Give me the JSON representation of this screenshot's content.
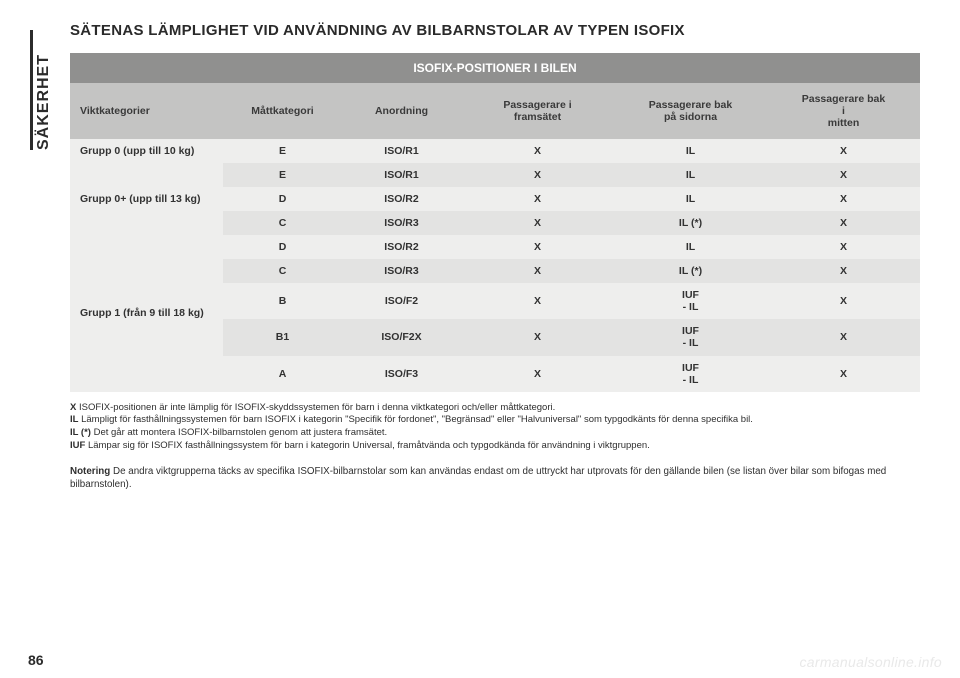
{
  "side_tab": "SÄKERHET",
  "title": "SÄTENAS LÄMPLIGHET VID ANVÄNDNING AV BILBARNSTOLAR AV TYPEN ISOFIX",
  "page_number": "86",
  "watermark": "carmanualsonline.info",
  "table": {
    "banner": "ISOFIX-POSITIONER I BILEN",
    "columns": [
      "Viktkategorier",
      "Måttkategori",
      "Anordning",
      "Passagerare i framsätet",
      "Passagerare bak på sidorna",
      "Passagerare bak i mitten"
    ],
    "col_widths_pct": [
      18,
      14,
      14,
      18,
      18,
      18
    ],
    "groups": [
      {
        "label": "Grupp 0 (upp till 10 kg)",
        "rows": [
          {
            "size": "E",
            "fixture": "ISO/R1",
            "front": "X",
            "rear_side": "IL",
            "rear_center": "X"
          }
        ]
      },
      {
        "label_html": "Grupp 0+ (upp till 13 kg)",
        "rows": [
          {
            "size": "E",
            "fixture": "ISO/R1",
            "front": "X",
            "rear_side": "IL",
            "rear_center": "X"
          },
          {
            "size": "D",
            "fixture": "ISO/R2",
            "front": "X",
            "rear_side": "IL",
            "rear_center": "X"
          },
          {
            "size": "C",
            "fixture": "ISO/R3",
            "front": "X",
            "rear_side": "IL (*)",
            "rear_center": "X"
          }
        ]
      },
      {
        "label_html": "Grupp 1 (från 9 till 18 kg)",
        "rows": [
          {
            "size": "D",
            "fixture": "ISO/R2",
            "front": "X",
            "rear_side": "IL",
            "rear_center": "X"
          },
          {
            "size": "C",
            "fixture": "ISO/R3",
            "front": "X",
            "rear_side": "IL (*)",
            "rear_center": "X"
          },
          {
            "size": "B",
            "fixture": "ISO/F2",
            "front": "X",
            "rear_side_html": "IUF<br>- IL",
            "rear_center": "X"
          },
          {
            "size": "B1",
            "fixture": "ISO/F2X",
            "front": "X",
            "rear_side_html": "IUF<br>- IL",
            "rear_center": "X"
          },
          {
            "size": "A",
            "fixture": "ISO/F3",
            "front": "X",
            "rear_side_html": "IUF<br>- IL",
            "rear_center": "X"
          }
        ]
      }
    ]
  },
  "legend": [
    {
      "lead": "X",
      "text": " ISOFIX-positionen är inte lämplig för ISOFIX-skyddssystemen för barn i denna viktkategori och/eller måttkategori."
    },
    {
      "lead": "IL",
      "text": " Lämpligt för fasthållningssystemen för barn ISOFIX i kategorin \"Specifik för fordonet\", \"Begränsad\" eller \"Halvuniversal\" som typgodkänts för denna specifika bil."
    },
    {
      "lead": "IL (*)",
      "text": " Det går att montera ISOFIX-bilbarnstolen genom att justera framsätet."
    },
    {
      "lead": "IUF",
      "text": " Lämpar sig för ISOFIX fasthållningssystem för barn i kategorin Universal, framåtvända och typgodkända för användning i viktgruppen."
    }
  ],
  "note": {
    "lead": "Notering",
    "text": "  De andra viktgrupperna täcks av specifika ISOFIX-bilbarnstolar som kan användas endast om de uttryckt har utprovats för den gällande bilen (se listan över bilar som bifogas med bilbarnstolen)."
  },
  "colors": {
    "banner_bg": "#90908f",
    "header_bg": "#c4c4c3",
    "stripe_a": "#eeeeed",
    "stripe_b": "#e3e3e2",
    "text": "#3a3a3a"
  }
}
